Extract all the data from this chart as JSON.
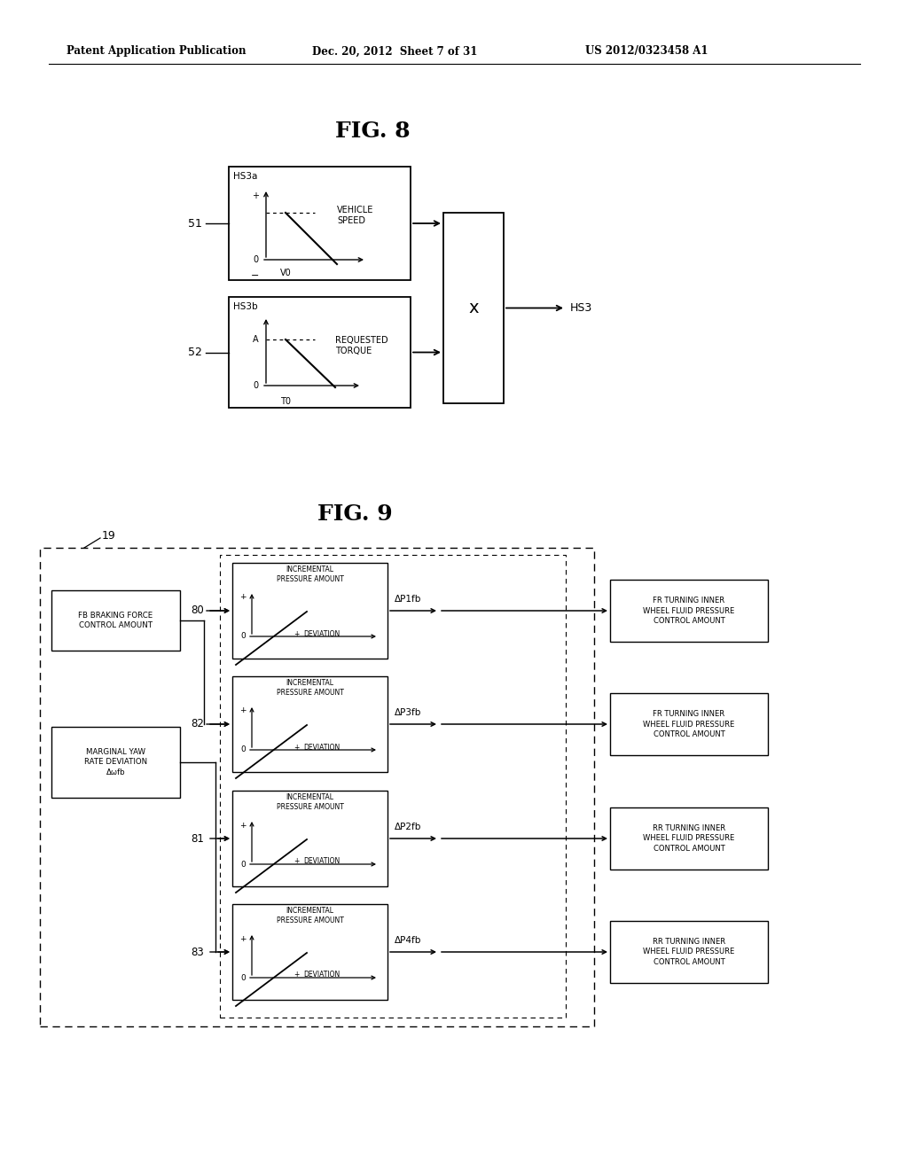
{
  "header_left": "Patent Application Publication",
  "header_middle": "Dec. 20, 2012  Sheet 7 of 31",
  "header_right": "US 2012/0323458 A1",
  "fig8_title": "FIG. 8",
  "fig9_title": "FIG. 9",
  "bg_color": "#ffffff",
  "line_color": "#000000",
  "text_color": "#000000"
}
